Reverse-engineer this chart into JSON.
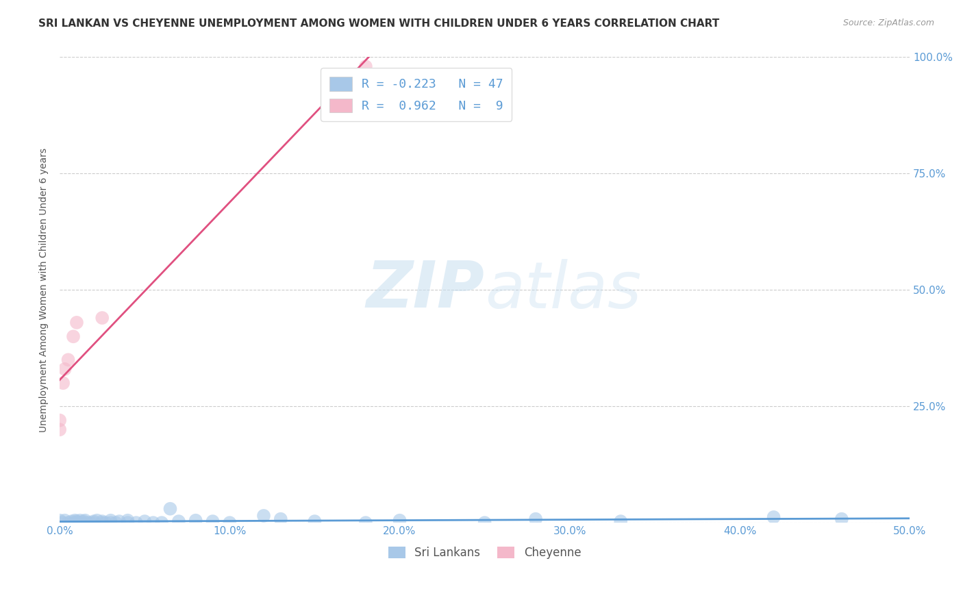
{
  "title": "SRI LANKAN VS CHEYENNE UNEMPLOYMENT AMONG WOMEN WITH CHILDREN UNDER 6 YEARS CORRELATION CHART",
  "source": "Source: ZipAtlas.com",
  "ylabel": "Unemployment Among Women with Children Under 6 years",
  "xlabel": "",
  "xlim": [
    0.0,
    0.5
  ],
  "ylim": [
    0.0,
    1.0
  ],
  "xticks": [
    0.0,
    0.1,
    0.2,
    0.3,
    0.4,
    0.5
  ],
  "yticks": [
    0.0,
    0.25,
    0.5,
    0.75,
    1.0
  ],
  "xticklabels": [
    "0.0%",
    "10.0%",
    "20.0%",
    "30.0%",
    "40.0%",
    "50.0%"
  ],
  "yticklabels_right": [
    "",
    "25.0%",
    "50.0%",
    "75.0%",
    "100.0%"
  ],
  "sri_lankan_color": "#a8c8e8",
  "cheyenne_color": "#f4b8ca",
  "sri_lankan_line_color": "#5b9bd5",
  "cheyenne_line_color": "#e05080",
  "sri_lankan_R": -0.223,
  "sri_lankan_N": 47,
  "cheyenne_R": 0.962,
  "cheyenne_N": 9,
  "legend_label_1": "Sri Lankans",
  "legend_label_2": "Cheyenne",
  "watermark_zip": "ZIP",
  "watermark_atlas": "atlas",
  "background_color": "#ffffff",
  "grid_color": "#cccccc",
  "title_color": "#333333",
  "axis_color": "#5b9bd5",
  "sri_lankans_x": [
    0.0,
    0.002,
    0.003,
    0.005,
    0.007,
    0.008,
    0.009,
    0.01,
    0.01,
    0.011,
    0.012,
    0.013,
    0.014,
    0.015,
    0.016,
    0.018,
    0.02,
    0.02,
    0.022,
    0.025,
    0.025,
    0.027,
    0.03,
    0.03,
    0.033,
    0.035,
    0.04,
    0.04,
    0.045,
    0.05,
    0.055,
    0.06,
    0.065,
    0.07,
    0.08,
    0.09,
    0.1,
    0.12,
    0.13,
    0.15,
    0.18,
    0.2,
    0.25,
    0.28,
    0.33,
    0.42,
    0.46
  ],
  "sri_lankans_y": [
    0.005,
    0.0,
    0.005,
    0.0,
    0.003,
    0.0,
    0.005,
    0.003,
    0.0,
    0.0,
    0.005,
    0.0,
    0.003,
    0.005,
    0.0,
    0.0,
    0.003,
    0.0,
    0.005,
    0.0,
    0.003,
    0.0,
    0.005,
    0.0,
    0.0,
    0.003,
    0.0,
    0.005,
    0.0,
    0.003,
    0.0,
    0.0,
    0.03,
    0.003,
    0.005,
    0.003,
    0.0,
    0.015,
    0.008,
    0.003,
    0.0,
    0.005,
    0.0,
    0.008,
    0.003,
    0.012,
    0.008
  ],
  "cheyenne_x": [
    0.0,
    0.0,
    0.002,
    0.003,
    0.005,
    0.008,
    0.01,
    0.025,
    0.18
  ],
  "cheyenne_y": [
    0.2,
    0.22,
    0.3,
    0.33,
    0.35,
    0.4,
    0.43,
    0.44,
    0.98
  ],
  "cheyenne_line_x0": 0.0,
  "cheyenne_line_x1": 0.2,
  "sri_line_x0": 0.0,
  "sri_line_x1": 0.46
}
